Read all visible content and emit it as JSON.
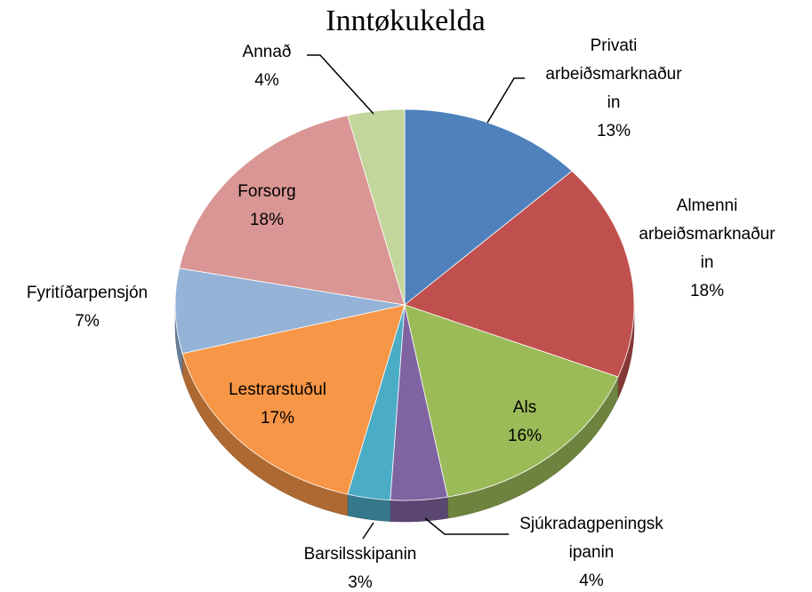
{
  "chart_data": {
    "type": "pie",
    "title": "Inntøkukelda",
    "categories": [
      "Privati\narbeiðsmarknaður\nin",
      "Almenni\narbeiðsmarknaður\nin",
      "Als",
      "Sjúkradagpeningsk\nipanin",
      "Barsilsskipanin",
      "Lestrarstuðul",
      "Fyritíðarpensjón",
      "Forsorg",
      "Annað"
    ],
    "values": [
      13,
      18,
      16,
      4,
      3,
      17,
      7,
      18,
      4
    ],
    "value_labels": [
      "13%",
      "18%",
      "16%",
      "4%",
      "3%",
      "17%",
      "7%",
      "18%",
      "4%"
    ],
    "colors": [
      "#4f81bd",
      "#c0504d",
      "#9bbb59",
      "#8064a2",
      "#4bacc6",
      "#f79646",
      "#95b3d7",
      "#d99694",
      "#c3d69b"
    ]
  }
}
